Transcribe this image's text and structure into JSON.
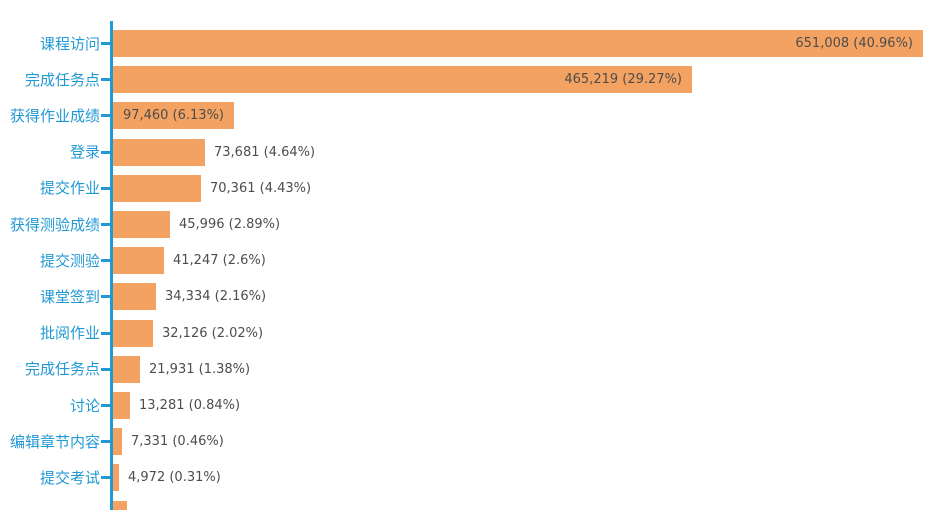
{
  "chart_data": {
    "type": "bar",
    "orientation": "horizontal",
    "title": "",
    "xlabel": "",
    "ylabel": "",
    "grid": false,
    "legend": null,
    "axis_position": "left",
    "bar_color": "#F3A261",
    "axis_color": "#2199D4",
    "category_label_color": "#2199D4",
    "value_label_color": "#4D4D4D",
    "background_color": "#FFFFFF",
    "categories": [
      "课程访问",
      "完成任务点",
      "获得作业成绩",
      "登录",
      "提交作业",
      "获得测验成绩",
      "提交测验",
      "课堂签到",
      "批阅作业",
      "完成任务点",
      "讨论",
      "编辑章节内容",
      "提交考试"
    ],
    "values": [
      651008,
      465219,
      97460,
      73681,
      70361,
      45996,
      41247,
      34334,
      32126,
      21931,
      13281,
      7331,
      4972
    ],
    "percentages": [
      40.96,
      29.27,
      6.13,
      4.64,
      4.43,
      2.89,
      2.6,
      2.16,
      2.02,
      1.38,
      0.84,
      0.46,
      0.31
    ],
    "display_labels": [
      "651,008 (40.96%)",
      "465,219 (29.27%)",
      "97,460 (6.13%)",
      "73,681 (4.64%)",
      "70,361 (4.43%)",
      "45,996 (2.89%)",
      "41,247 (2.6%)",
      "34,334 (2.16%)",
      "32,126 (2.02%)",
      "21,931 (1.38%)",
      "13,281 (0.84%)",
      "7,331 (0.46%)",
      "4,972 (0.31%)"
    ],
    "label_inside": [
      true,
      true,
      true,
      false,
      false,
      false,
      false,
      false,
      false,
      false,
      false,
      false,
      false
    ],
    "partial_bottom_bar": true
  }
}
